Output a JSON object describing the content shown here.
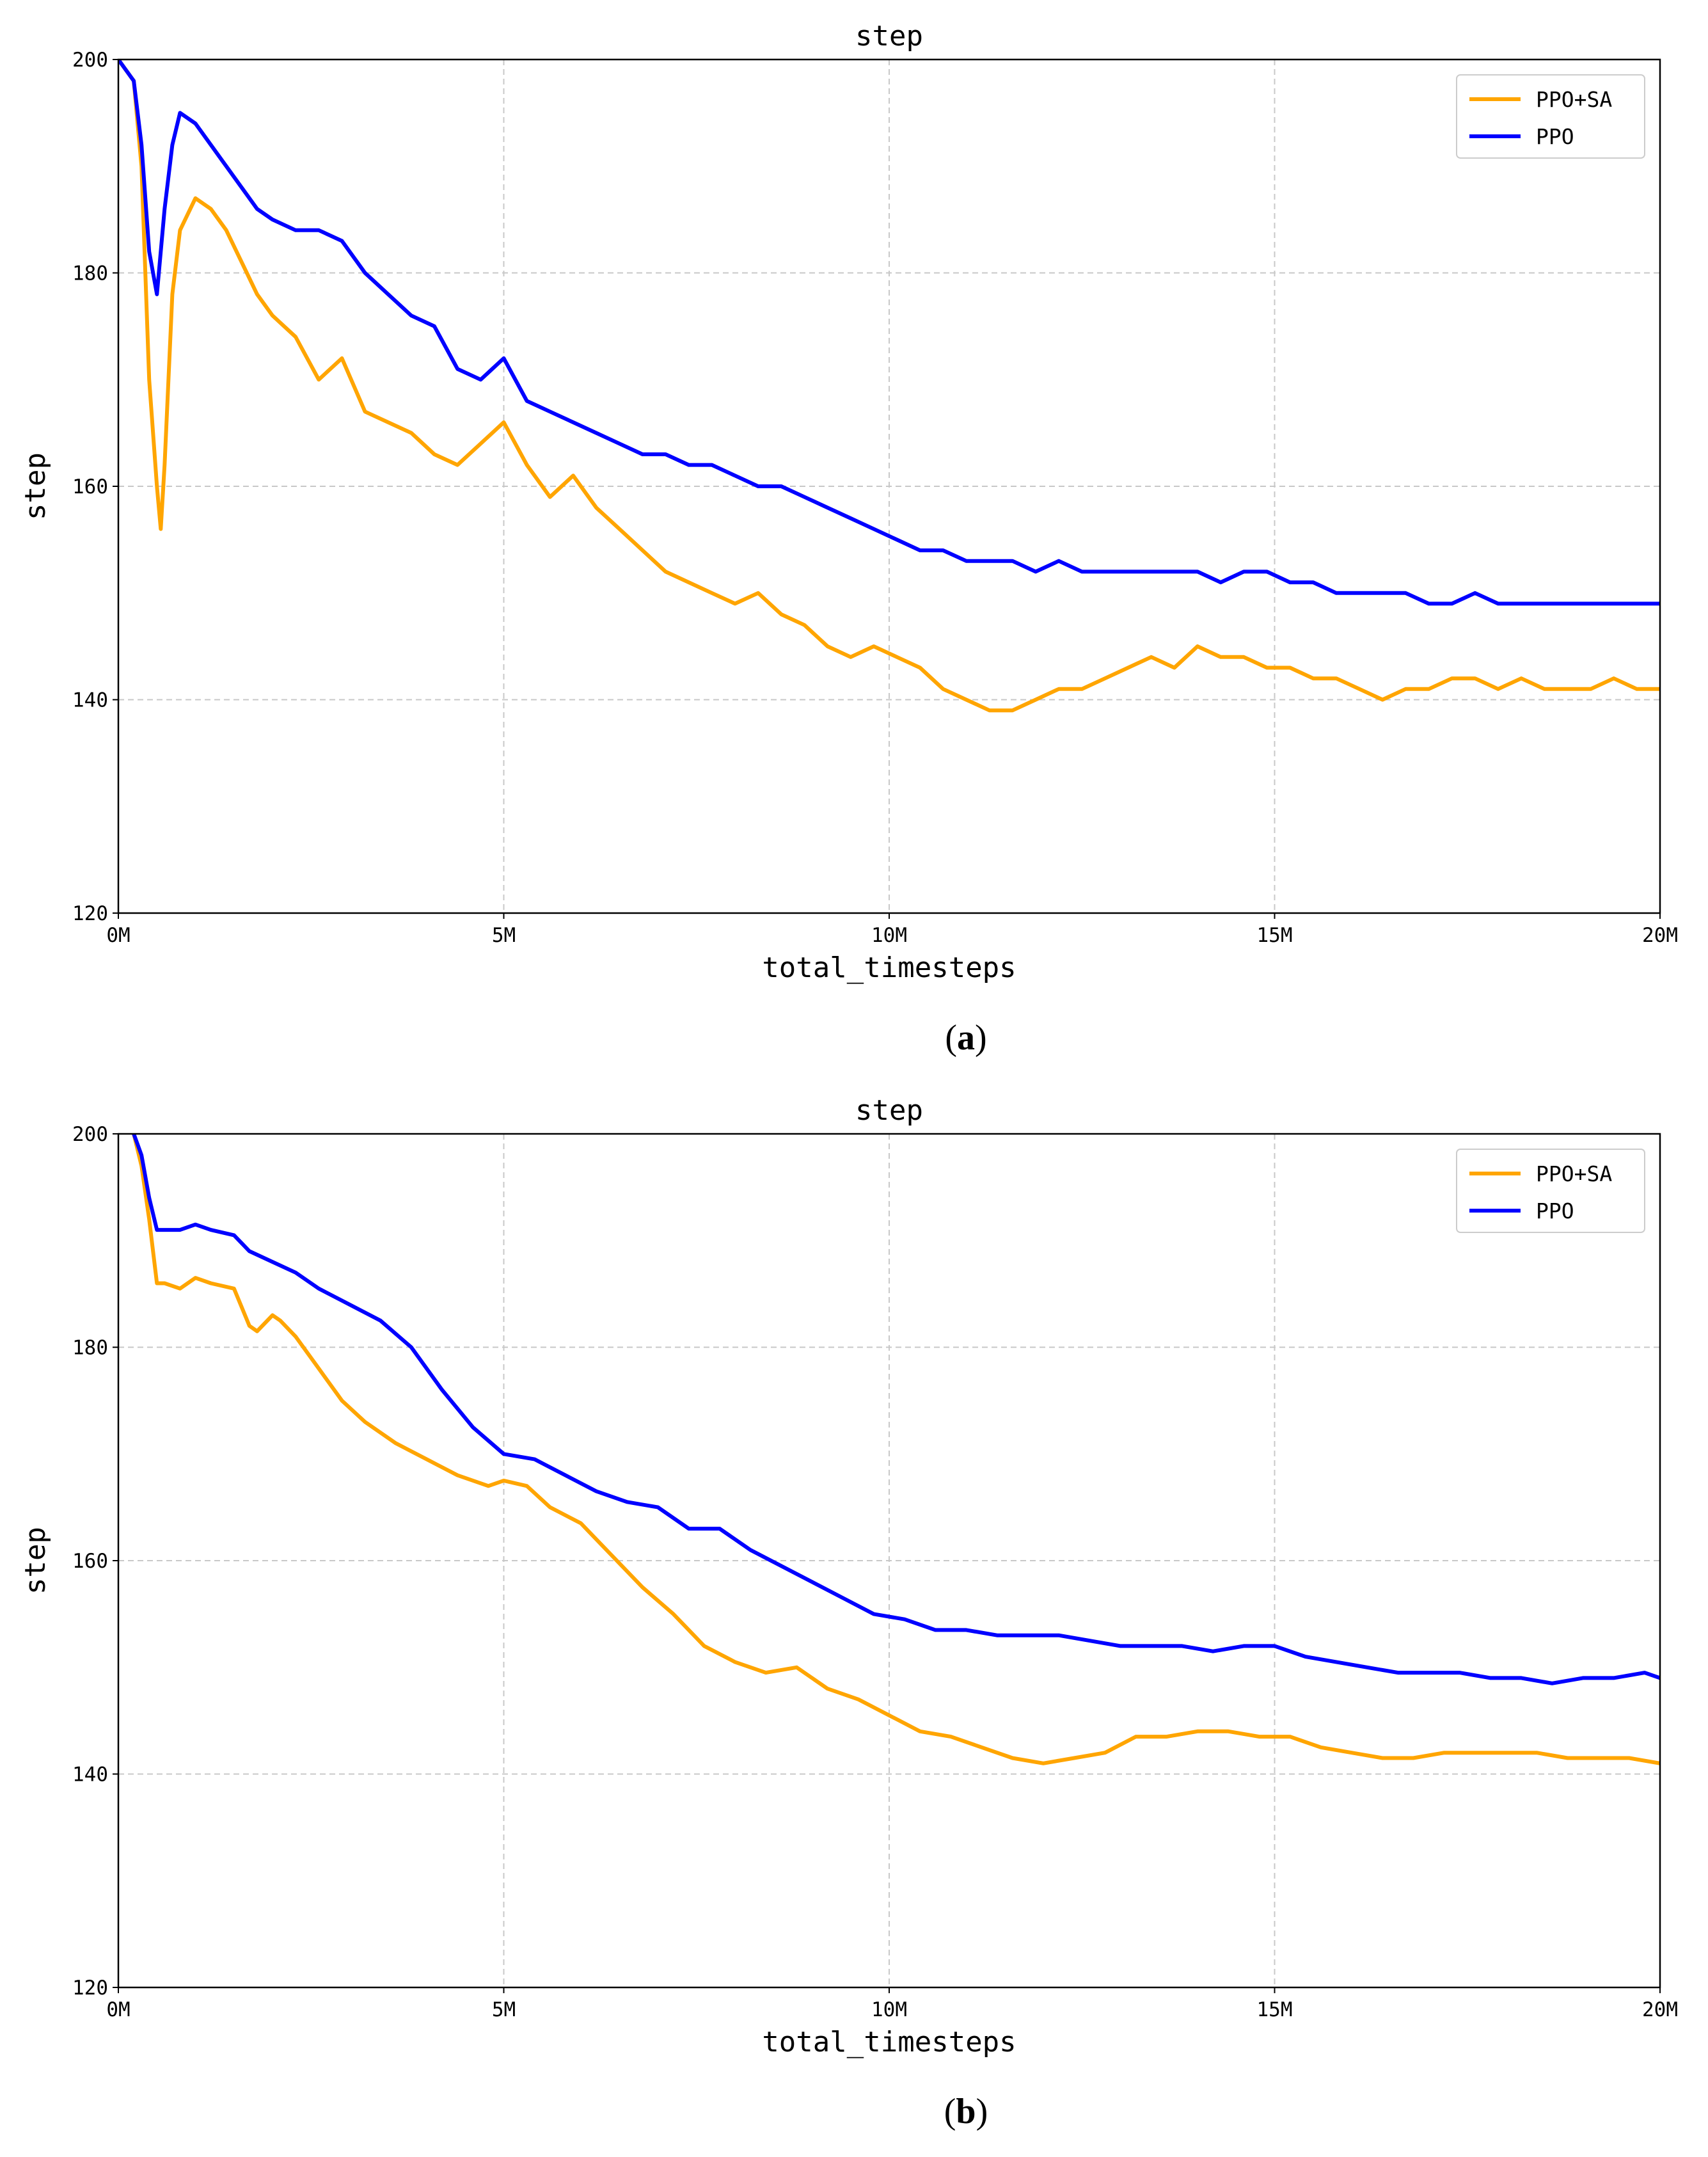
{
  "chart_data": [
    {
      "type": "line",
      "title": "step",
      "xlabel": "total_timesteps",
      "ylabel": "step",
      "caption_letter": "a",
      "xlim": [
        0,
        20
      ],
      "ylim": [
        120,
        200
      ],
      "x_unit": "M",
      "xticks": [
        0,
        5,
        10,
        15,
        20
      ],
      "xtick_labels": [
        "0M",
        "5M",
        "10M",
        "15M",
        "20M"
      ],
      "yticks": [
        120,
        140,
        160,
        180,
        200
      ],
      "ytick_labels": [
        "120",
        "140",
        "160",
        "180",
        "200"
      ],
      "grid": true,
      "legend_position": "top-right",
      "series": [
        {
          "name": "PPO+SA",
          "color": "#FFA500",
          "x": [
            0,
            0.1,
            0.2,
            0.3,
            0.4,
            0.5,
            0.55,
            0.6,
            0.7,
            0.8,
            1.0,
            1.2,
            1.4,
            1.6,
            1.8,
            2.0,
            2.3,
            2.6,
            2.9,
            3.2,
            3.5,
            3.8,
            4.1,
            4.4,
            4.7,
            5.0,
            5.3,
            5.6,
            5.9,
            6.2,
            6.5,
            6.8,
            7.1,
            7.4,
            7.7,
            8.0,
            8.3,
            8.6,
            8.9,
            9.2,
            9.5,
            9.8,
            10.1,
            10.4,
            10.7,
            11.0,
            11.3,
            11.6,
            11.9,
            12.2,
            12.5,
            12.8,
            13.1,
            13.4,
            13.7,
            14.0,
            14.3,
            14.6,
            14.9,
            15.2,
            15.5,
            15.8,
            16.1,
            16.4,
            16.7,
            17.0,
            17.3,
            17.6,
            17.9,
            18.2,
            18.5,
            18.8,
            19.1,
            19.4,
            19.7,
            20.0
          ],
          "values": [
            200,
            199,
            198,
            190,
            170,
            160,
            156,
            162,
            178,
            184,
            187,
            186,
            184,
            181,
            178,
            176,
            174,
            170,
            172,
            167,
            166,
            165,
            163,
            162,
            164,
            166,
            162,
            159,
            161,
            158,
            156,
            154,
            152,
            151,
            150,
            149,
            150,
            148,
            147,
            145,
            144,
            145,
            144,
            143,
            141,
            140,
            139,
            139,
            140,
            141,
            141,
            142,
            143,
            144,
            143,
            145,
            144,
            144,
            143,
            143,
            142,
            142,
            141,
            140,
            141,
            141,
            142,
            142,
            141,
            142,
            141,
            141,
            141,
            142,
            141,
            141
          ]
        },
        {
          "name": "PPO",
          "color": "#0000FF",
          "x": [
            0,
            0.1,
            0.2,
            0.3,
            0.4,
            0.5,
            0.6,
            0.7,
            0.8,
            1.0,
            1.2,
            1.4,
            1.6,
            1.8,
            2.0,
            2.3,
            2.6,
            2.9,
            3.2,
            3.5,
            3.8,
            4.1,
            4.4,
            4.7,
            5.0,
            5.3,
            5.6,
            5.9,
            6.2,
            6.5,
            6.8,
            7.1,
            7.4,
            7.7,
            8.0,
            8.3,
            8.6,
            8.9,
            9.2,
            9.5,
            9.8,
            10.1,
            10.4,
            10.7,
            11.0,
            11.3,
            11.6,
            11.9,
            12.2,
            12.5,
            12.8,
            13.1,
            13.4,
            13.7,
            14.0,
            14.3,
            14.6,
            14.9,
            15.2,
            15.5,
            15.8,
            16.1,
            16.4,
            16.7,
            17.0,
            17.3,
            17.6,
            17.9,
            18.2,
            18.5,
            18.8,
            19.1,
            19.4,
            19.7,
            20.0
          ],
          "values": [
            200,
            199,
            198,
            192,
            182,
            178,
            186,
            192,
            195,
            194,
            192,
            190,
            188,
            186,
            185,
            184,
            184,
            183,
            180,
            178,
            176,
            175,
            171,
            170,
            172,
            168,
            167,
            166,
            165,
            164,
            163,
            163,
            162,
            162,
            161,
            160,
            160,
            159,
            158,
            157,
            156,
            155,
            154,
            154,
            153,
            153,
            153,
            152,
            153,
            152,
            152,
            152,
            152,
            152,
            152,
            151,
            152,
            152,
            151,
            151,
            150,
            150,
            150,
            150,
            149,
            149,
            150,
            149,
            149,
            149,
            149,
            149,
            149,
            149,
            149
          ]
        }
      ]
    },
    {
      "type": "line",
      "title": "step",
      "xlabel": "total_timesteps",
      "ylabel": "step",
      "caption_letter": "b",
      "xlim": [
        0,
        20
      ],
      "ylim": [
        120,
        200
      ],
      "x_unit": "M",
      "xticks": [
        0,
        5,
        10,
        15,
        20
      ],
      "xtick_labels": [
        "0M",
        "5M",
        "10M",
        "15M",
        "20M"
      ],
      "yticks": [
        120,
        140,
        160,
        180,
        200
      ],
      "ytick_labels": [
        "120",
        "140",
        "160",
        "180",
        "200"
      ],
      "grid": true,
      "legend_position": "top-right",
      "series": [
        {
          "name": "PPO+SA",
          "color": "#FFA500",
          "x": [
            0.2,
            0.3,
            0.4,
            0.5,
            0.6,
            0.8,
            1.0,
            1.2,
            1.5,
            1.7,
            1.8,
            2.0,
            2.1,
            2.3,
            2.6,
            2.9,
            3.2,
            3.6,
            4.0,
            4.4,
            4.8,
            5.0,
            5.3,
            5.6,
            6.0,
            6.4,
            6.8,
            7.2,
            7.6,
            8.0,
            8.4,
            8.8,
            9.2,
            9.6,
            10.0,
            10.4,
            10.8,
            11.2,
            11.6,
            12.0,
            12.4,
            12.8,
            13.2,
            13.6,
            14.0,
            14.4,
            14.8,
            15.2,
            15.6,
            16.0,
            16.4,
            16.8,
            17.2,
            17.6,
            18.0,
            18.4,
            18.8,
            19.2,
            19.6,
            20.0
          ],
          "values": [
            200,
            197,
            192,
            186,
            186,
            185.5,
            186.5,
            186,
            185.5,
            182,
            181.5,
            183,
            182.5,
            181,
            178,
            175,
            173,
            171,
            169.5,
            168,
            167,
            167.5,
            167,
            165,
            163.5,
            160.5,
            157.5,
            155,
            152,
            150.5,
            149.5,
            150,
            148,
            147,
            145.5,
            144,
            143.5,
            142.5,
            141.5,
            141,
            141.5,
            142,
            143.5,
            143.5,
            144,
            144,
            143.5,
            143.5,
            142.5,
            142,
            141.5,
            141.5,
            142,
            142,
            142,
            142,
            141.5,
            141.5,
            141.5,
            141
          ]
        },
        {
          "name": "PPO",
          "color": "#0000FF",
          "x": [
            0.2,
            0.3,
            0.4,
            0.5,
            0.6,
            0.8,
            1.0,
            1.2,
            1.5,
            1.7,
            2.0,
            2.3,
            2.6,
            3.0,
            3.4,
            3.8,
            4.2,
            4.6,
            5.0,
            5.4,
            5.8,
            6.2,
            6.6,
            7.0,
            7.4,
            7.8,
            8.2,
            8.6,
            9.0,
            9.4,
            9.8,
            10.2,
            10.6,
            11.0,
            11.4,
            11.8,
            12.2,
            12.6,
            13.0,
            13.4,
            13.8,
            14.2,
            14.6,
            15.0,
            15.4,
            15.8,
            16.2,
            16.6,
            17.0,
            17.4,
            17.8,
            18.2,
            18.6,
            19.0,
            19.4,
            19.8,
            20.0
          ],
          "values": [
            200,
            198,
            194,
            191,
            191,
            191,
            191.5,
            191,
            190.5,
            189,
            188,
            187,
            185.5,
            184,
            182.5,
            180,
            176,
            172.5,
            170,
            169.5,
            168,
            166.5,
            165.5,
            165,
            163,
            163,
            161,
            159.5,
            158,
            156.5,
            155,
            154.5,
            153.5,
            153.5,
            153,
            153,
            153,
            152.5,
            152,
            152,
            152,
            151.5,
            152,
            152,
            151,
            150.5,
            150,
            149.5,
            149.5,
            149.5,
            149,
            149,
            148.5,
            149,
            149,
            149.5,
            149
          ]
        }
      ]
    }
  ]
}
